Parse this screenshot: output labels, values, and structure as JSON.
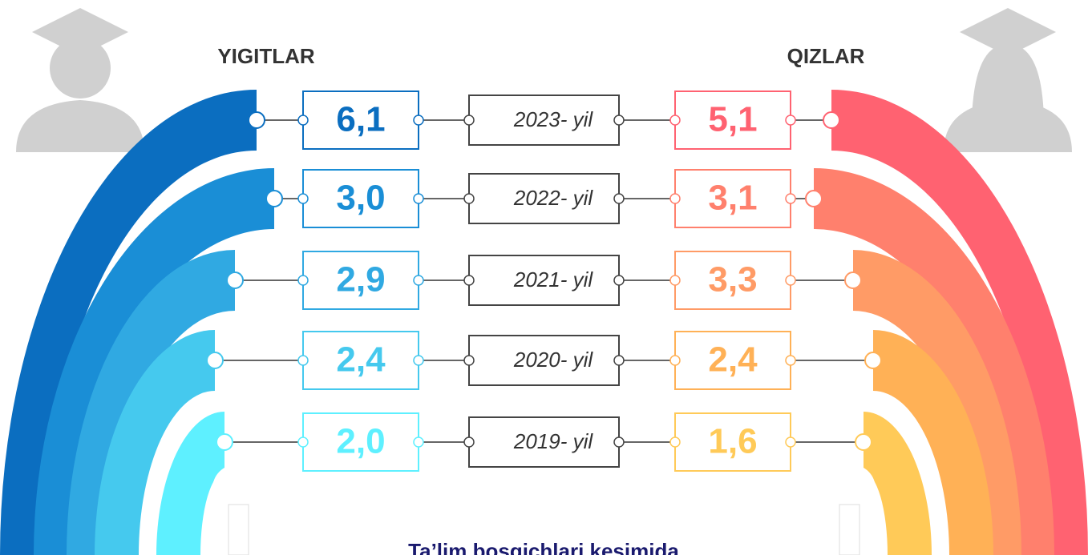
{
  "headers": {
    "left": "YIGITLAR",
    "right": "QIZLAR"
  },
  "rows": [
    {
      "year": "2023- yil",
      "left": "6,1",
      "right": "5,1"
    },
    {
      "year": "2022- yil",
      "left": "3,0",
      "right": "3,1"
    },
    {
      "year": "2021- yil",
      "left": "2,9",
      "right": "3,3"
    },
    {
      "year": "2020- yil",
      "left": "2,4",
      "right": "2,4"
    },
    {
      "year": "2019- yil",
      "left": "2,0",
      "right": "1,6"
    }
  ],
  "footer": "Ta’lim bosqichlari kesimida"
}
